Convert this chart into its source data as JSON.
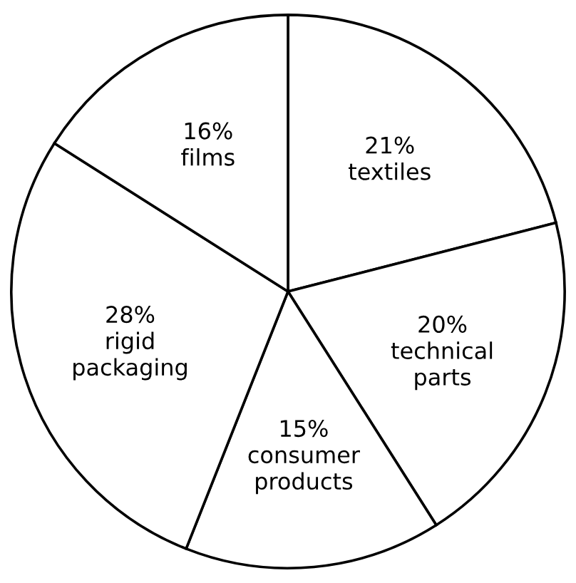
{
  "chart_data": {
    "type": "pie",
    "categories": [
      "textiles",
      "technical parts",
      "consumer products",
      "rigid packaging",
      "films"
    ],
    "values": [
      21,
      20,
      15,
      28,
      16
    ],
    "value_labels": [
      "21%",
      "20%",
      "15%",
      "28%",
      "16%"
    ],
    "colors": [
      "#ffffff",
      "#ffffff",
      "#ffffff",
      "#ffffff",
      "#ffffff"
    ],
    "legend": false
  }
}
